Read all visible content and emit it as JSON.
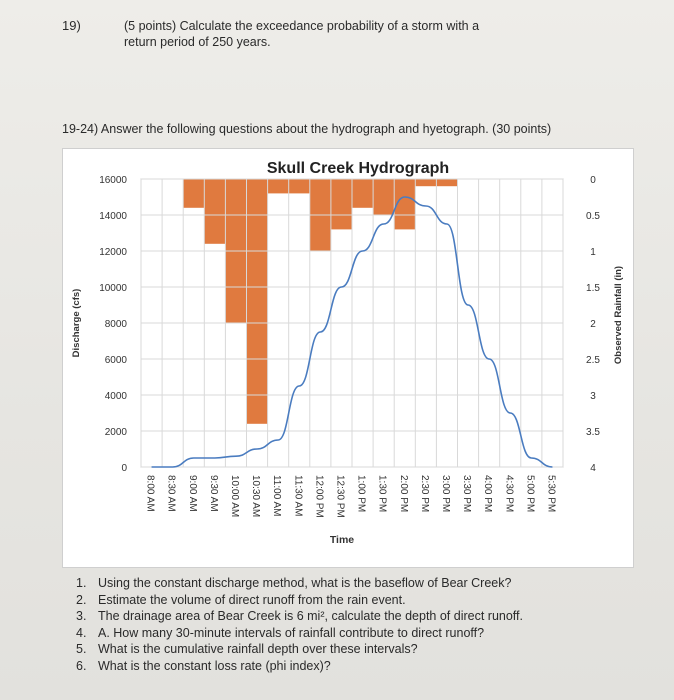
{
  "question": {
    "number": "19)",
    "text_line1": "(5 points) Calculate the exceedance probability of a storm with a",
    "text_line2": "return period of 250 years."
  },
  "section": {
    "heading": "19-24) Answer the following questions about the hydrograph and hyetograph. (30 points)"
  },
  "chart_data": {
    "type": "line",
    "title": "Skull Creek Hydrograph",
    "xlabel": "Time",
    "ylabel": "Discharge (cfs)",
    "y2label": "Observed Rainfall (in)",
    "ylim": [
      0,
      16000
    ],
    "y2lim": [
      0,
      4
    ],
    "y2_inverted": true,
    "yticks": [
      "0",
      "2000",
      "4000",
      "6000",
      "8000",
      "10000",
      "12000",
      "14000",
      "16000"
    ],
    "y2ticks": [
      "0",
      "0.5",
      "1",
      "1.5",
      "2",
      "2.5",
      "3",
      "3.5",
      "4"
    ],
    "categories": [
      "8:00 AM",
      "8:30 AM",
      "9:00 AM",
      "9:30 AM",
      "10:00 AM",
      "10:30 AM",
      "11:00 AM",
      "11:30 AM",
      "12:00 PM",
      "12:30 PM",
      "1:00 PM",
      "1:30 PM",
      "2:00 PM",
      "2:30 PM",
      "3:00 PM",
      "3:30 PM",
      "4:00 PM",
      "4:30 PM",
      "5:00 PM",
      "5:30 PM"
    ],
    "grid": true,
    "series": [
      {
        "kind": "line",
        "color": "#4a7cc0",
        "values": [
          0,
          0,
          500,
          500,
          600,
          1000,
          1500,
          4500,
          7500,
          10000,
          12000,
          13500,
          15000,
          14500,
          13500,
          9000,
          6000,
          3000,
          500,
          0
        ]
      },
      {
        "kind": "bar",
        "axis": "y2",
        "color": "#e07a3f",
        "values": [
          0,
          0,
          0.4,
          0.9,
          2.0,
          3.4,
          0.2,
          0.2,
          1.0,
          0.7,
          0.4,
          0.5,
          0.7,
          0.1,
          0.1,
          0,
          0,
          0,
          0,
          0
        ]
      }
    ]
  },
  "questions": [
    {
      "num": "1.",
      "text": "Using the constant discharge method, what is the baseflow of Bear Creek?"
    },
    {
      "num": "2.",
      "text": "Estimate the volume of direct runoff from the rain event."
    },
    {
      "num": "3.",
      "text": "The drainage area of Bear Creek is 6 mi², calculate the depth of direct runoff."
    },
    {
      "num": "4.",
      "text": "A. How many 30-minute intervals of rainfall contribute to direct runoff?"
    },
    {
      "num": "5.",
      "text": "What is the cumulative rainfall depth over these intervals?"
    },
    {
      "num": "6.",
      "text": "What is the constant loss rate (phi index)?"
    }
  ]
}
